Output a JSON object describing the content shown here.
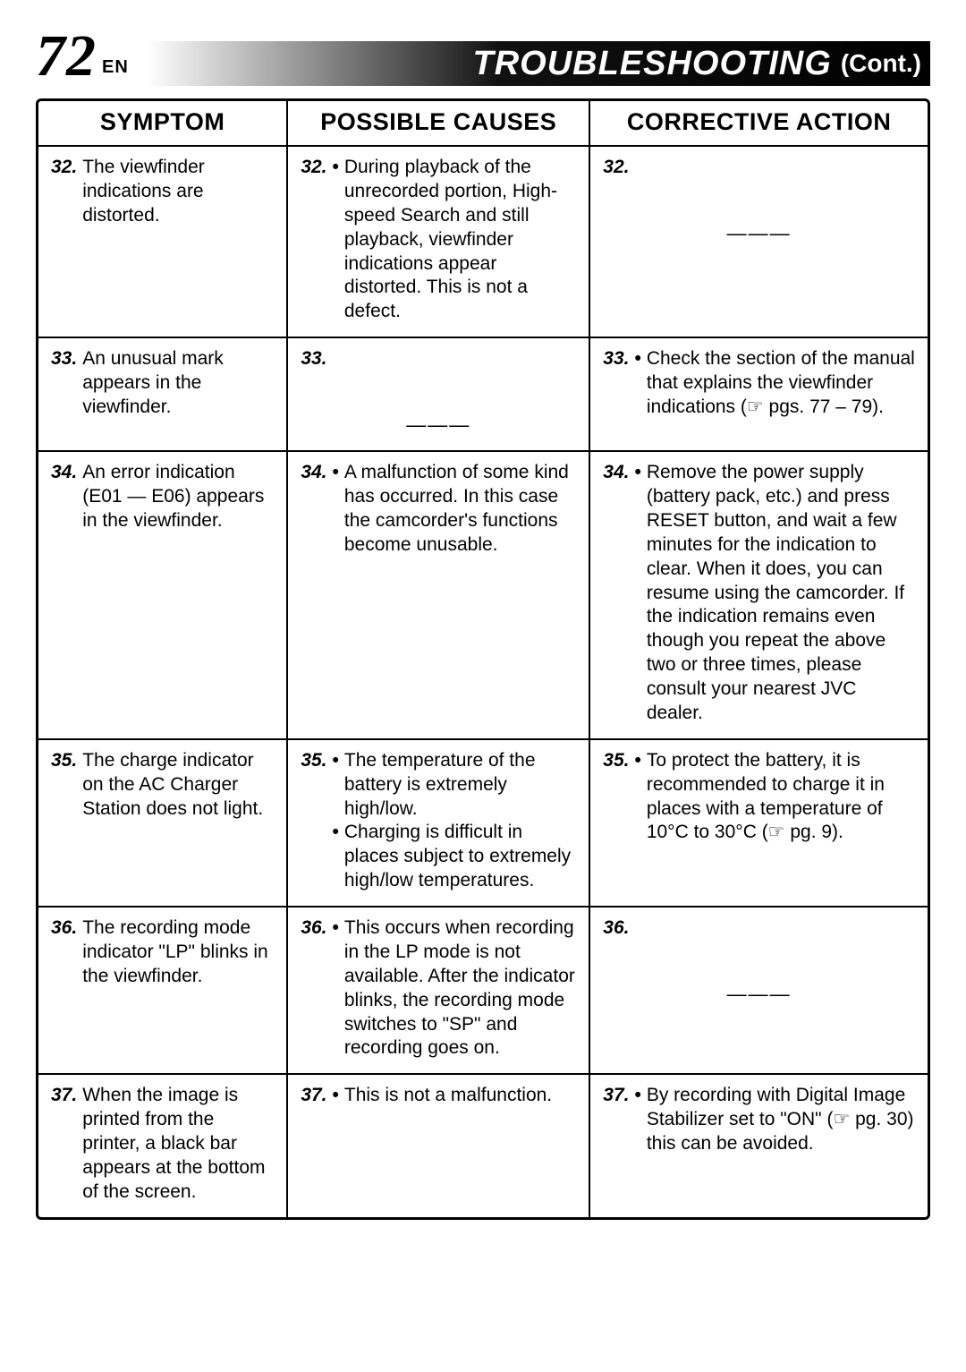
{
  "header": {
    "page_number": "72",
    "lang": "EN",
    "title": "TROUBLESHOOTING",
    "cont": "(Cont.)"
  },
  "table": {
    "columns": [
      "SYMPTOM",
      "POSSIBLE CAUSES",
      "CORRECTIVE ACTION"
    ],
    "col_widths_pct": [
      28,
      34,
      38
    ],
    "rows": [
      {
        "num": "32.",
        "symptom": "The viewfinder indications are distorted.",
        "causes": [
          "During playback of the unrecorded portion, High-speed Search and still playback, viewfinder indications appear distorted. This is not a defect."
        ],
        "action_dash": true,
        "actions": []
      },
      {
        "num": "33.",
        "symptom": "An unusual mark appears in the viewfinder.",
        "causes_dash": true,
        "causes": [],
        "actions": [
          "Check the section of the manual that explains the viewfinder indications (☞ pgs. 77 – 79)."
        ]
      },
      {
        "num": "34.",
        "symptom": "An error indication (E01 — E06) appears in the viewfinder.",
        "causes": [
          "A malfunction of some kind has occurred. In this case the camcorder's functions become unusable."
        ],
        "actions": [
          "Remove the power supply (battery pack, etc.) and press RESET button, and wait a few minutes for the indication to clear. When it does, you can resume using the camcorder. If the indication remains even though you repeat the above two or three times, please consult your nearest JVC dealer."
        ]
      },
      {
        "num": "35.",
        "symptom": "The charge indicator on the AC Charger Station does not light.",
        "causes": [
          "The temperature of the battery is extremely high/low.",
          "Charging is difficult in places subject to extremely high/low temperatures."
        ],
        "actions": [
          "To protect the battery, it is recommended to charge it in places with a temperature of 10°C to 30°C (☞ pg. 9)."
        ]
      },
      {
        "num": "36.",
        "symptom": "The recording mode indicator \"LP\" blinks in the viewfinder.",
        "causes": [
          "This occurs when recording in the LP mode is not available. After the indicator blinks, the recording mode switches to \"SP\" and recording goes on."
        ],
        "action_dash": true,
        "actions": []
      },
      {
        "num": "37.",
        "symptom": "When the image is printed from the printer, a black bar appears at the bottom of the screen.",
        "causes": [
          "This is not a malfunction."
        ],
        "actions": [
          "By recording with Digital Image Stabilizer set to \"ON\" (☞ pg. 30) this can be avoided."
        ]
      }
    ]
  },
  "style": {
    "page_bg": "#ffffff",
    "text_color": "#000000",
    "border_color": "#000000",
    "header_gradient_from": "#ffffff",
    "header_gradient_to": "#000000",
    "page_number_fontsize": 66,
    "title_fontsize": 38,
    "th_fontsize": 27,
    "td_fontsize": 21,
    "border_width_outer": 3,
    "border_width_inner": 2,
    "border_radius": 6
  }
}
